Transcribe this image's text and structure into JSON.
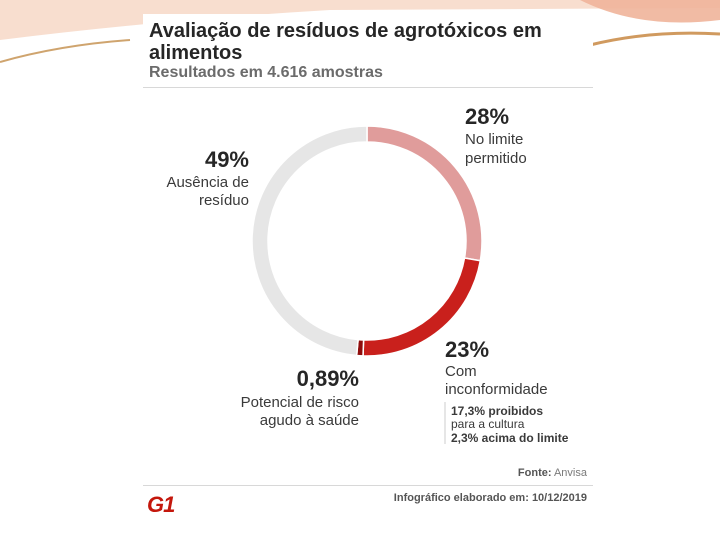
{
  "figure": {
    "title": "Avaliação de resíduos de agrotóxicos em alimentos",
    "subtitle": "Resultados em 4.616 amostras",
    "source_label": "Fonte:",
    "source_value": "Anvisa",
    "credit_label": "Infográfico elaborado em:",
    "credit_value": "10/12/2019",
    "brand": "G1"
  },
  "labels": {
    "limit": {
      "pct": "28%",
      "line1": "No limite",
      "line2": "permitido"
    },
    "nonconform": {
      "pct": "23%",
      "line1": "Com",
      "line2": "inconformidade",
      "note1": "17,3% proibidos",
      "note2": "para a cultura",
      "note3": "2,3% acima do limite"
    },
    "risk": {
      "pct": "0,89%",
      "line1": "Potencial de risco",
      "line2": "agudo à saúde"
    },
    "absence": {
      "pct": "49%",
      "line1": "Ausência de",
      "line2": "resíduo"
    }
  },
  "chart_data": {
    "type": "pie",
    "donut": true,
    "title": "Avaliação de resíduos de agrotóxicos em alimentos",
    "subtitle": "Resultados em 4.616 amostras",
    "slices": [
      {
        "key": "limit",
        "label": "No limite permitido",
        "value": 28,
        "color": "#e09c9b"
      },
      {
        "key": "nonconform",
        "label": "Com inconformidade",
        "value": 23,
        "color": "#c9201c",
        "breakdown": [
          {
            "label": "proibidos para a cultura",
            "value": 17.3
          },
          {
            "label": "acima do limite",
            "value": 2.3
          }
        ]
      },
      {
        "key": "risk",
        "label": "Potencial de risco agudo à saúde",
        "value": 0.89,
        "color": "#8f0d0c"
      },
      {
        "key": "absence",
        "label": "Ausência de resíduo",
        "value": 49,
        "color": "#e6e6e6"
      }
    ],
    "start_angle_deg": 0,
    "direction": "clockwise",
    "legend": "none"
  },
  "colors": {
    "deco": "#e8a27a",
    "brand": "#c4170c"
  }
}
